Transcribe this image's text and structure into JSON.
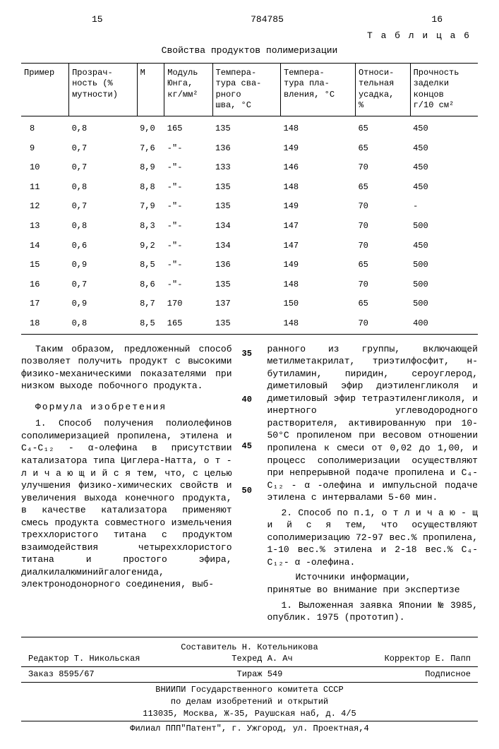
{
  "header": {
    "left_num": "15",
    "center_num": "784785",
    "right_num": "16"
  },
  "table": {
    "label": "Т а б л и ц а  6",
    "title": "Свойства продуктов полимеризации",
    "columns": [
      "Пример",
      "Прозрач-\nность (%\nмутности)",
      "М",
      "Модуль\nЮнга,\nкг/мм²",
      "Темпера-\nтура сва-\nрного\nшва, °С",
      "Темпера-\nтура пла-\nвления, °С",
      "Относи-\nтельная\nусадка,\n%",
      "Прочность\nзаделки\nконцов\nг/10 см²"
    ],
    "rows": [
      [
        "8",
        "0,8",
        "9,0",
        "165",
        "135",
        "148",
        "65",
        "450"
      ],
      [
        "9",
        "0,7",
        "7,6",
        "-\"-",
        "136",
        "149",
        "65",
        "450"
      ],
      [
        "10",
        "0,7",
        "8,9",
        "-\"-",
        "133",
        "146",
        "70",
        "450"
      ],
      [
        "11",
        "0,8",
        "8,8",
        "-\"-",
        "135",
        "148",
        "65",
        "450"
      ],
      [
        "12",
        "0,7",
        "7,9",
        "-\"-",
        "135",
        "149",
        "70",
        "-"
      ],
      [
        "13",
        "0,8",
        "8,3",
        "-\"-",
        "134",
        "147",
        "70",
        "500"
      ],
      [
        "14",
        "0,6",
        "9,2",
        "-\"-",
        "134",
        "147",
        "70",
        "450"
      ],
      [
        "15",
        "0,9",
        "8,5",
        "-\"-",
        "136",
        "149",
        "65",
        "500"
      ],
      [
        "16",
        "0,7",
        "8,6",
        "-\"-",
        "135",
        "148",
        "70",
        "500"
      ],
      [
        "17",
        "0,9",
        "8,7",
        "170",
        "137",
        "150",
        "65",
        "500"
      ],
      [
        "18",
        "0,8",
        "8,5",
        "165",
        "135",
        "148",
        "70",
        "400"
      ]
    ]
  },
  "line_numbers": [
    "35",
    "40",
    "45",
    "50"
  ],
  "left_col": {
    "para1": "Таким образом, предложенный способ позволяет получить продукт с высокими физико-механическими показателями при низком выходе побочного продукта.",
    "formula_head": "Формула изобретения",
    "para2": "1. Способ получения полиолефинов сополимеризацией пропилена, этилена и C₄-C₁₂ - α-олефина в присутствии катализатора типа Циглера-Натта, о т - л и ч а ю щ и й с я  тем, что, с целью улучшения физико-химических свойств и увеличения выхода конечного продукта, в качестве катализатора применяют смесь продукта совместного измельчения треххлористого титана с продуктом взаимодействия четыреххлористого титана и простого эфира, диалкилалюминийгалогенида, электронодонорного соединения, выб-"
  },
  "right_col": {
    "para1": "ранного из группы, включающей метилметакрилат, триэтилфосфит, н-бутиламин, пиридин, сероуглерод, диметиловый эфир диэтиленгликоля и диметиловый эфир тетраэтиленгликоля, и инертного углеводородного растворителя, активированную при 10-50°С пропиленом при весовом отношении пропилена к смеси от 0,02 до 1,00, и процесс сополимеризации осуществляют при непрерывной подаче пропилена и C₄-C₁₂ - α -олефина и импульсной подаче этилена с интервалами 5-60 мин.",
    "para2": "2. Способ по п.1, о т л и ч а ю - щ и й с я  тем, что осуществляют сополимеризацию 72-97 вес.% пропилена, 1-10 вес.% этилена и 2-18 вес.% C₄-C₁₂- α -олефина.",
    "src_head": "Источники информации,\nпринятые во внимание при экспертизе",
    "para3": "1. Выложенная заявка Японии № 3985, опублик. 1975 (прототип)."
  },
  "footer": {
    "row1": {
      "compiler": "Составитель Н. Котельникова"
    },
    "row2": {
      "editor": "Редактор Т. Никольская",
      "tech": "Техред А. Ач",
      "corr": "Корректор Е. Папп"
    },
    "row3": {
      "order": "Заказ 8595/67",
      "tirage": "Тираж 549",
      "sub": "Подписное"
    },
    "org1": "ВНИИПИ Государственного комитета СССР",
    "org2": "по делам изобретений и открытий",
    "addr": "113035, Москва, Ж-35, Раушская наб, д. 4/5",
    "filial": "Филиал ППП\"Патент\", г. Ужгород, ул. Проектная,4"
  }
}
